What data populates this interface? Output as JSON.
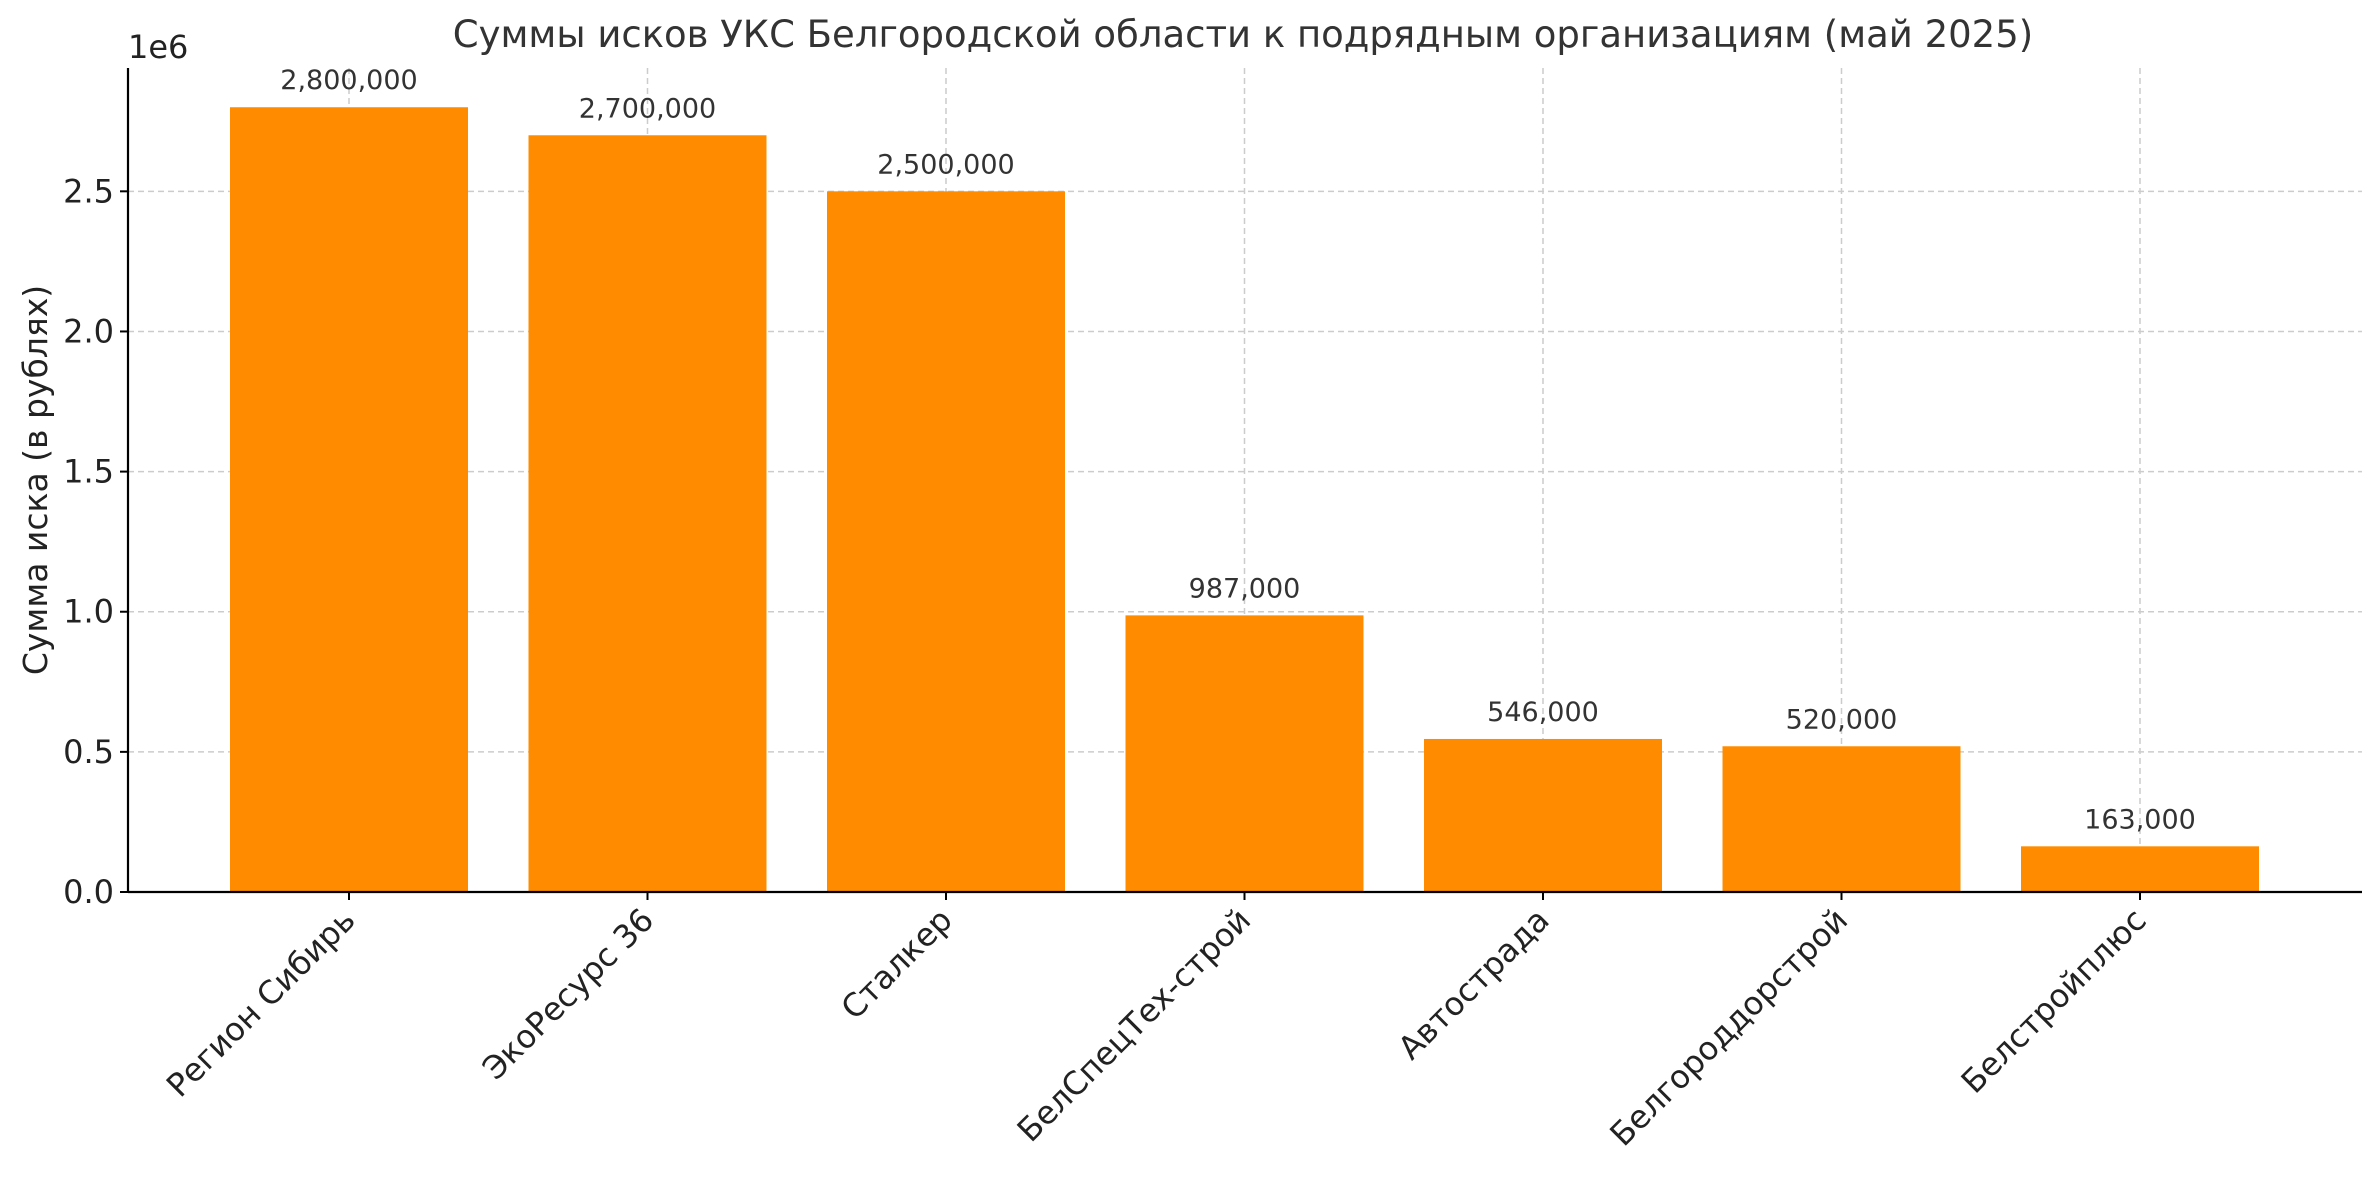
{
  "chart_data": {
    "type": "bar",
    "title": "Суммы исков УКС Белгородской области к подрядным организациям (май 2025)",
    "xlabel": "",
    "ylabel": "Сумма иска (в рублях)",
    "y_offset_label": "1e6",
    "categories": [
      "Регион Сибирь",
      "ЭкоРесурс 36",
      "Сталкер",
      "БелСпецТех-строй",
      "Автострада",
      "Белгороддорстрой",
      "Белстройплюс"
    ],
    "values": [
      2800000,
      2700000,
      2500000,
      987000,
      546000,
      520000,
      163000
    ],
    "value_labels": [
      "2,800,000",
      "2,700,000",
      "2,500,000",
      "987,000",
      "546,000",
      "520,000",
      "163,000"
    ],
    "yticks": [
      0,
      500000,
      1000000,
      1500000,
      2000000,
      2500000
    ],
    "ytick_labels": [
      "0.0",
      "0.5",
      "1.0",
      "1.5",
      "2.0",
      "2.5"
    ],
    "ylim": [
      0,
      2940000
    ],
    "bar_color": "#ff8c00",
    "grid": true,
    "legend": "none"
  }
}
